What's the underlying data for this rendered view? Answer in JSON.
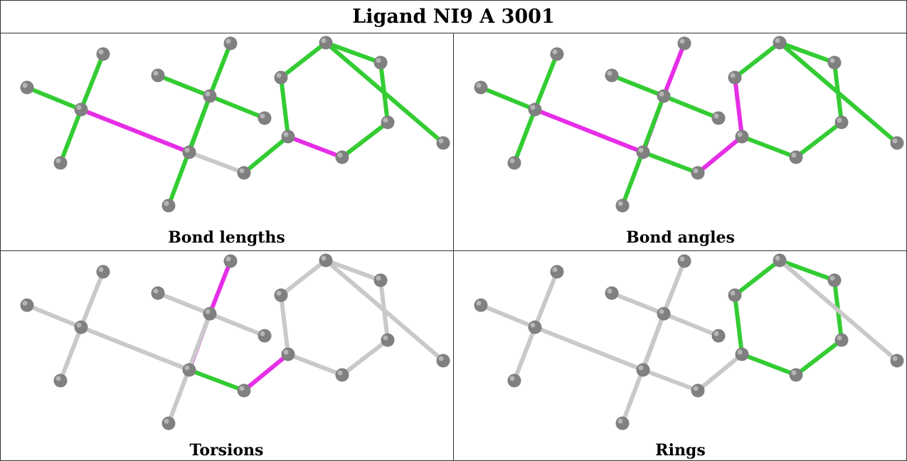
{
  "title": "Ligand NI9 A 3001",
  "colors": {
    "outlier": "#e62ee6",
    "ok": "#33cc33",
    "neutral": "#c9c9c9",
    "atom": "#808080"
  },
  "molecule": {
    "atoms": [
      "a0",
      "a1",
      "a2",
      "a3",
      "a4",
      "a5",
      "a6",
      "a7",
      "a8",
      "a9",
      "a10",
      "a11",
      "a12",
      "a13",
      "a14",
      "a15",
      "a16",
      "a17",
      "a18"
    ],
    "bonds": [
      [
        "a1",
        "a0"
      ],
      [
        "a1",
        "a2"
      ],
      [
        "a1",
        "a3"
      ],
      [
        "a1",
        "a4"
      ],
      [
        "a4",
        "a5"
      ],
      [
        "a4",
        "a10"
      ],
      [
        "a5",
        "a6"
      ],
      [
        "a5",
        "a7"
      ],
      [
        "a5",
        "a8"
      ],
      [
        "a5",
        "a9"
      ],
      [
        "a10",
        "a11"
      ],
      [
        "a11",
        "a12"
      ],
      [
        "a12",
        "a13"
      ],
      [
        "a13",
        "a14"
      ],
      [
        "a14",
        "a15"
      ],
      [
        "a15",
        "a16"
      ],
      [
        "a16",
        "a11"
      ],
      [
        "a15",
        "a17"
      ],
      [
        "a13",
        "a18"
      ]
    ]
  },
  "panels": [
    {
      "caption": "Bond lengths",
      "bond_colors": [
        "ok",
        "ok",
        "ok",
        "outlier",
        "ok",
        "neutral",
        "ok",
        "ok",
        "ok",
        "ok",
        "ok",
        "outlier",
        "ok",
        "ok",
        "ok",
        "ok",
        "ok",
        "ok",
        "ok"
      ]
    },
    {
      "caption": "Bond angles",
      "bond_colors": [
        "ok",
        "ok",
        "ok",
        "outlier",
        "outlier",
        "ok",
        "outlier",
        "ok",
        "ok",
        "ok",
        "outlier",
        "ok",
        "ok",
        "ok",
        "ok",
        "ok",
        "outlier",
        "ok",
        "ok"
      ]
    },
    {
      "caption": "Torsions",
      "bond_colors": [
        "neutral",
        "neutral",
        "neutral",
        "neutral",
        "outlier",
        "ok",
        "outlier",
        "neutral",
        "neutral",
        "neutral",
        "outlier",
        "neutral",
        "neutral",
        "neutral",
        "neutral",
        "neutral",
        "neutral",
        "neutral",
        "neutral"
      ]
    },
    {
      "caption": "Rings",
      "bond_colors": [
        "neutral",
        "neutral",
        "neutral",
        "neutral",
        "neutral",
        "neutral",
        "neutral",
        "neutral",
        "neutral",
        "neutral",
        "neutral",
        "ok",
        "ok",
        "ok",
        "ok",
        "ok",
        "ok",
        "neutral",
        "neutral"
      ]
    }
  ]
}
